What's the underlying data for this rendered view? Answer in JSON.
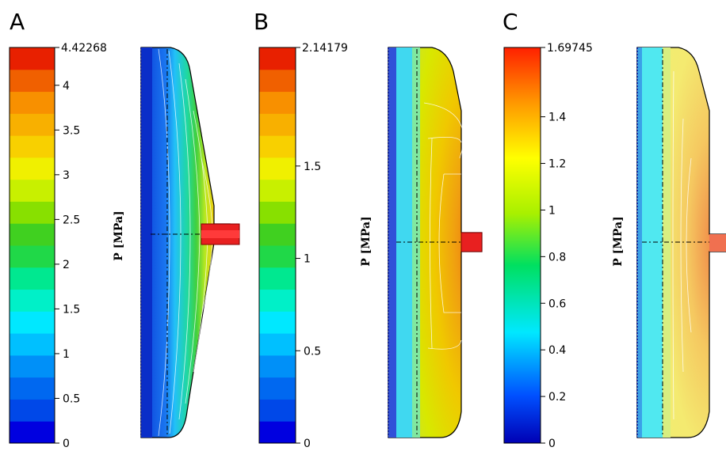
{
  "panels": [
    {
      "letter": "A",
      "colorbar": {
        "type": "stepped",
        "min": 0,
        "max": 4.42268,
        "max_label": "4.42268",
        "ticks": [
          "0",
          "0.5",
          "1",
          "1.5",
          "2",
          "2.5",
          "3",
          "3.5",
          "4"
        ],
        "tick_values": [
          0,
          0.5,
          1,
          1.5,
          2,
          2.5,
          3,
          3.5,
          4
        ]
      },
      "axis_label": "P [MPa]"
    },
    {
      "letter": "B",
      "colorbar": {
        "type": "stepped",
        "min": 0,
        "max": 2.14179,
        "max_label": "2.14179",
        "ticks": [
          "0",
          "0.5",
          "1",
          "1.5"
        ],
        "tick_values": [
          0,
          0.5,
          1,
          1.5
        ]
      },
      "axis_label": "P [MPa]"
    },
    {
      "letter": "C",
      "colorbar": {
        "type": "continuous",
        "min": 0,
        "max": 1.69745,
        "max_label": "1.69745",
        "ticks": [
          "0",
          "0.2",
          "0.4",
          "0.6",
          "0.8",
          "1",
          "1.2",
          "1.4"
        ],
        "tick_values": [
          0,
          0.2,
          0.4,
          0.6,
          0.8,
          1,
          1.2,
          1.4
        ]
      },
      "axis_label": "P [MPa]"
    }
  ]
}
